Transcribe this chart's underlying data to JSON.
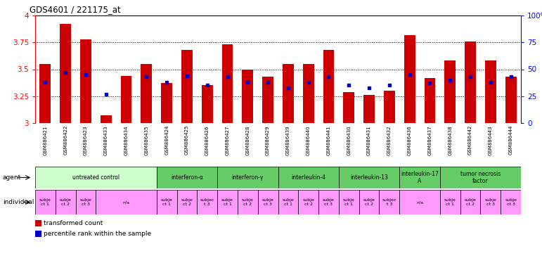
{
  "title": "GDS4601 / 221175_at",
  "samples": [
    "GSM886421",
    "GSM886422",
    "GSM886423",
    "GSM886433",
    "GSM886434",
    "GSM886435",
    "GSM886424",
    "GSM886425",
    "GSM886426",
    "GSM886427",
    "GSM886428",
    "GSM886429",
    "GSM886439",
    "GSM886440",
    "GSM886441",
    "GSM886430",
    "GSM886431",
    "GSM886432",
    "GSM886436",
    "GSM886437",
    "GSM886438",
    "GSM886442",
    "GSM886443",
    "GSM886444"
  ],
  "bar_values": [
    3.55,
    3.92,
    3.78,
    3.07,
    3.44,
    3.55,
    3.37,
    3.68,
    3.35,
    3.73,
    3.5,
    3.43,
    3.55,
    3.55,
    3.68,
    3.29,
    3.26,
    3.3,
    3.82,
    3.42,
    3.58,
    3.76,
    3.58,
    3.43
  ],
  "dot_values": [
    3.38,
    3.47,
    3.45,
    3.27,
    null,
    3.43,
    3.38,
    3.44,
    3.35,
    3.43,
    3.38,
    3.38,
    3.33,
    3.38,
    3.43,
    3.35,
    3.33,
    3.35,
    3.45,
    3.37,
    3.4,
    3.43,
    3.38,
    3.43
  ],
  "ylim": [
    3.0,
    4.0
  ],
  "yticks": [
    3.0,
    3.25,
    3.5,
    3.75,
    4.0
  ],
  "ytick_labels_left": [
    "3",
    "3.25",
    "3.5",
    "3.75",
    "4"
  ],
  "ytick_labels_right": [
    "0",
    "25",
    "50",
    "75",
    "100%"
  ],
  "gridlines": [
    3.25,
    3.5,
    3.75
  ],
  "agent_groups": [
    {
      "label": "untreated control",
      "start": 0,
      "end": 5,
      "color": "#ccffcc"
    },
    {
      "label": "interferon-α",
      "start": 6,
      "end": 8,
      "color": "#66cc66"
    },
    {
      "label": "interferon-γ",
      "start": 9,
      "end": 11,
      "color": "#66cc66"
    },
    {
      "label": "interleukin-4",
      "start": 12,
      "end": 14,
      "color": "#66cc66"
    },
    {
      "label": "interleukin-13",
      "start": 15,
      "end": 17,
      "color": "#66cc66"
    },
    {
      "label": "interleukin-17\nA",
      "start": 18,
      "end": 19,
      "color": "#66cc66"
    },
    {
      "label": "tumor necrosis\nfactor",
      "start": 20,
      "end": 23,
      "color": "#66cc66"
    }
  ],
  "indiv_data": [
    [
      0,
      0,
      "subje\nct 1"
    ],
    [
      1,
      1,
      "subje\nct 2"
    ],
    [
      2,
      2,
      "subje\nct 3"
    ],
    [
      3,
      5,
      "n/a"
    ],
    [
      6,
      6,
      "subje\nct 1"
    ],
    [
      7,
      7,
      "subje\nct 2"
    ],
    [
      8,
      8,
      "subjec\nt 3"
    ],
    [
      9,
      9,
      "subje\nct 1"
    ],
    [
      10,
      10,
      "subje\nct 2"
    ],
    [
      11,
      11,
      "subje\nct 3"
    ],
    [
      12,
      12,
      "subje\nct 1"
    ],
    [
      13,
      13,
      "subje\nct 2"
    ],
    [
      14,
      14,
      "subje\nct 3"
    ],
    [
      15,
      15,
      "subje\nct 1"
    ],
    [
      16,
      16,
      "subje\nct 2"
    ],
    [
      17,
      17,
      "subjec\nt 3"
    ],
    [
      18,
      19,
      "n/a"
    ],
    [
      20,
      20,
      "subje\nct 1"
    ],
    [
      21,
      21,
      "subje\nct 2"
    ],
    [
      22,
      22,
      "subje\nct 3"
    ],
    [
      23,
      23,
      "subje\nct 3"
    ]
  ],
  "indiv_color": "#ff99ff",
  "bar_color": "#cc0000",
  "dot_color": "#0000cc",
  "bg_color": "#ffffff"
}
